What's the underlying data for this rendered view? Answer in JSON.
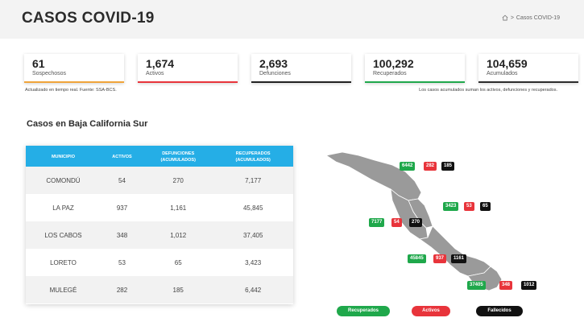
{
  "header": {
    "title": "CASOS COVID-19",
    "breadcrumb_current": "Casos COVID-19",
    "breadcrumb_sep": ">"
  },
  "stats": [
    {
      "value": "61",
      "label": "Sospechosos",
      "color": "#f0a43a"
    },
    {
      "value": "1,674",
      "label": "Activos",
      "color": "#e8343b"
    },
    {
      "value": "2,693",
      "label": "Defunciones",
      "color": "#222222"
    },
    {
      "value": "100,292",
      "label": "Recuperados",
      "color": "#1fa84b"
    },
    {
      "value": "104,659",
      "label": "Acumulados",
      "color": "#2c2c2c"
    }
  ],
  "notes": {
    "left": "Actualizado en tiempo real. Fuente: SSA-BCS.",
    "right": "Los casos acumulados suman los activos, defunciones y recuperados."
  },
  "section_title": "Casos en Baja California Sur",
  "table": {
    "headers": [
      "MUNICIPIO",
      "ACTIVOS",
      "DEFUNCIONES\n(ACUMULADOS)",
      "RECUPERADOS\n(ACUMULADOS)"
    ],
    "rows": [
      [
        "COMONDÚ",
        "54",
        "270",
        "7,177"
      ],
      [
        "LA PAZ",
        "937",
        "1,161",
        "45,845"
      ],
      [
        "LOS CABOS",
        "348",
        "1,012",
        "37,405"
      ],
      [
        "LORETO",
        "53",
        "65",
        "3,423"
      ],
      [
        "MULEGÉ",
        "282",
        "185",
        "6,442"
      ]
    ]
  },
  "map_labels": [
    {
      "municipio": "Mulegé",
      "recuperados": "6442",
      "activos": "282",
      "fallecidos": "185"
    },
    {
      "municipio": "Loreto",
      "recuperados": "3423",
      "activos": "53",
      "fallecidos": "65"
    },
    {
      "municipio": "Comondú",
      "recuperados": "7177",
      "activos": "54",
      "fallecidos": "270"
    },
    {
      "municipio": "La Paz",
      "recuperados": "45845",
      "activos": "937",
      "fallecidos": "1161"
    },
    {
      "municipio": "Los Cabos",
      "recuperados": "37405",
      "activos": "348",
      "fallecidos": "1012"
    }
  ],
  "legend": [
    {
      "label": "Recuperados",
      "color": "#1fa84b"
    },
    {
      "label": "Activos",
      "color": "#e8343b"
    },
    {
      "label": "Fallecidos",
      "color": "#111111"
    }
  ],
  "icons": {
    "breadcrumb_home": "home-icon"
  }
}
